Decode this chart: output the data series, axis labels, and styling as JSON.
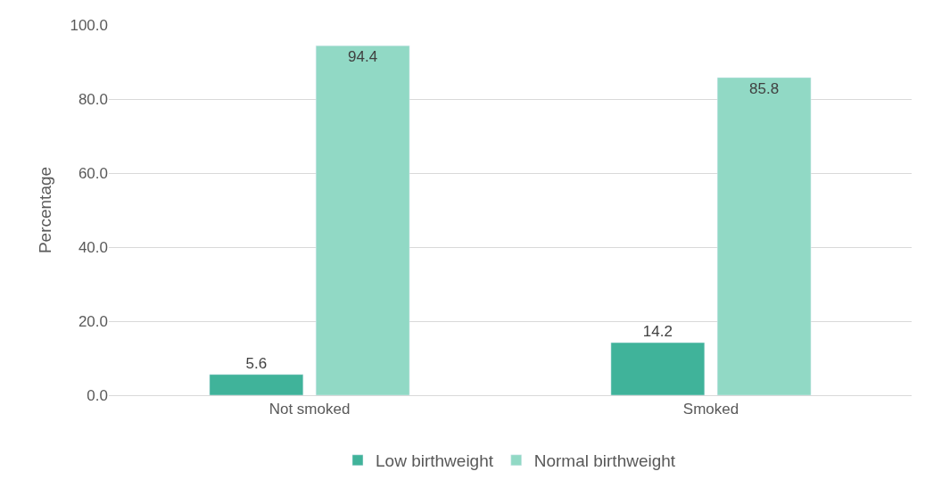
{
  "chart_data": {
    "type": "bar",
    "ylabel": "Percentage",
    "categories": [
      "Not smoked",
      "Smoked"
    ],
    "series": [
      {
        "name": "Low birthweight",
        "color": "#40b39a",
        "values": [
          5.6,
          14.2
        ]
      },
      {
        "name": "Normal birthweight",
        "color": "#91d9c5",
        "values": [
          94.4,
          85.8
        ]
      }
    ],
    "ylim": [
      0,
      100
    ],
    "yticks": [
      {
        "value": 0,
        "label": "0.0"
      },
      {
        "value": 20,
        "label": "20.0"
      },
      {
        "value": 40,
        "label": "40.0"
      },
      {
        "value": 60,
        "label": "60.0"
      },
      {
        "value": 80,
        "label": "80.0"
      },
      {
        "value": 100,
        "label": "100.0"
      }
    ],
    "grid": "y",
    "legend": "bottom",
    "data_labels": true
  }
}
